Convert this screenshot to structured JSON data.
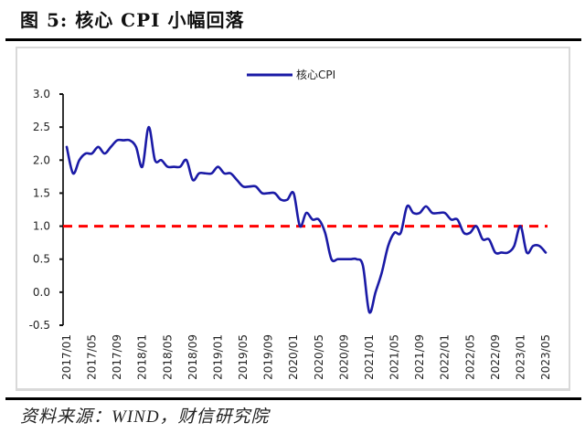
{
  "title": "图 5:  核心 CPI 小幅回落",
  "source": "资料来源：WIND，财信研究院",
  "colors": {
    "series": "#1a1aa6",
    "reference": "#ff0000",
    "axis": "#333333",
    "negative_label": "#e0003c"
  },
  "chart_data": {
    "type": "line",
    "title": "核心 CPI 小幅回落",
    "xlabel": "",
    "ylabel": "",
    "ylim": [
      -0.5,
      3.0
    ],
    "yticks": [
      "3.0",
      "2.5",
      "2.0",
      "1.5",
      "1.0",
      "0.5",
      "0.0",
      "-0.5"
    ],
    "xticks": [
      "2017/01",
      "2017/05",
      "2017/09",
      "2018/01",
      "2018/05",
      "2018/09",
      "2019/01",
      "2019/05",
      "2019/09",
      "2020/01",
      "2020/05",
      "2020/09",
      "2021/01",
      "2021/05",
      "2021/09",
      "2022/01",
      "2022/05",
      "2022/09",
      "2023/01",
      "2023/05"
    ],
    "grid": false,
    "legend_position": "top-center",
    "reference_line": {
      "y": 1.0,
      "style": "dashed",
      "color": "#ff0000"
    },
    "series": [
      {
        "name": "核心CPI",
        "x_start": "2017/01",
        "x_end": "2023/05",
        "frequency": "monthly",
        "values": [
          2.2,
          1.8,
          2.0,
          2.1,
          2.1,
          2.2,
          2.1,
          2.2,
          2.3,
          2.3,
          2.3,
          2.2,
          1.9,
          2.5,
          2.0,
          2.0,
          1.9,
          1.9,
          1.9,
          2.0,
          1.7,
          1.8,
          1.8,
          1.8,
          1.9,
          1.8,
          1.8,
          1.7,
          1.6,
          1.6,
          1.6,
          1.5,
          1.5,
          1.5,
          1.4,
          1.4,
          1.5,
          1.0,
          1.2,
          1.1,
          1.1,
          0.9,
          0.5,
          0.5,
          0.5,
          0.5,
          0.5,
          0.4,
          -0.3,
          0.0,
          0.3,
          0.7,
          0.9,
          0.9,
          1.3,
          1.2,
          1.2,
          1.3,
          1.2,
          1.2,
          1.2,
          1.1,
          1.1,
          0.9,
          0.9,
          1.0,
          0.8,
          0.8,
          0.6,
          0.6,
          0.6,
          0.7,
          1.0,
          0.6,
          0.7,
          0.7,
          0.6
        ]
      }
    ]
  }
}
